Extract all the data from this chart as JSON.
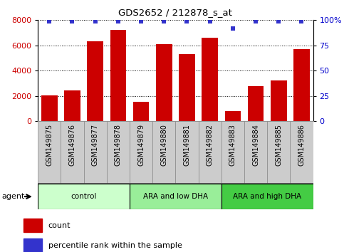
{
  "title": "GDS2652 / 212878_s_at",
  "samples": [
    "GSM149875",
    "GSM149876",
    "GSM149877",
    "GSM149878",
    "GSM149879",
    "GSM149880",
    "GSM149881",
    "GSM149882",
    "GSM149883",
    "GSM149884",
    "GSM149885",
    "GSM149886"
  ],
  "counts": [
    2050,
    2450,
    6300,
    7200,
    1500,
    6100,
    5300,
    6600,
    800,
    2750,
    3200,
    5700
  ],
  "percentile_ranks": [
    99,
    99,
    99,
    99,
    99,
    99,
    99,
    99,
    92,
    99,
    99,
    99
  ],
  "bar_color": "#cc0000",
  "dot_color": "#3333cc",
  "ylim_left": [
    0,
    8000
  ],
  "ylim_right": [
    0,
    100
  ],
  "yticks_left": [
    0,
    2000,
    4000,
    6000,
    8000
  ],
  "yticks_right": [
    0,
    25,
    50,
    75,
    100
  ],
  "ytick_labels_right": [
    "0",
    "25",
    "50",
    "75",
    "100%"
  ],
  "groups": [
    {
      "label": "control",
      "start": 0,
      "end": 3,
      "color": "#ccffcc"
    },
    {
      "label": "ARA and low DHA",
      "start": 4,
      "end": 7,
      "color": "#99ee99"
    },
    {
      "label": "ARA and high DHA",
      "start": 8,
      "end": 11,
      "color": "#44cc44"
    }
  ],
  "agent_label": "agent",
  "tick_label_color_left": "#cc0000",
  "tick_label_color_right": "#0000cc",
  "background_plot": "#ffffff",
  "background_xtick": "#cccccc",
  "legend_count_label": "count",
  "legend_pct_label": "percentile rank within the sample"
}
